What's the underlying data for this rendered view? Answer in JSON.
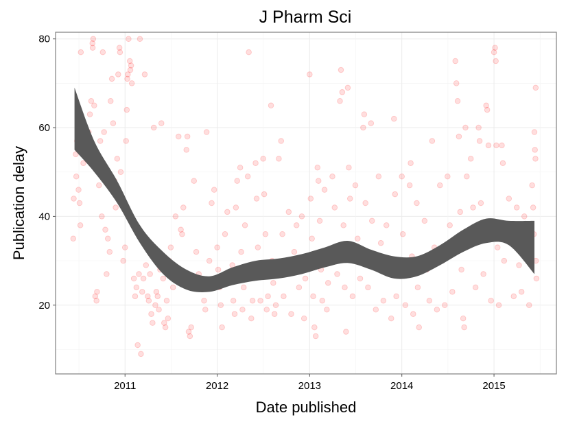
{
  "chart_data": {
    "type": "scatter",
    "title": "J Pharm Sci",
    "xlabel": "Date published",
    "ylabel": "Publication delay",
    "x_range": [
      "2010-04-01",
      "2015-09-05"
    ],
    "y_range": [
      4.5,
      81.5
    ],
    "x_ticks": [
      {
        "date": "2011-01-01",
        "label": "2011"
      },
      {
        "date": "2012-01-01",
        "label": "2012"
      },
      {
        "date": "2013-01-01",
        "label": "2013"
      },
      {
        "date": "2014-01-01",
        "label": "2014"
      },
      {
        "date": "2015-01-01",
        "label": "2015"
      }
    ],
    "y_ticks": [
      20,
      40,
      60,
      80
    ],
    "grid": true,
    "point_color": "#ff0000",
    "point_opacity": 0.13,
    "smooth_color": "#595959",
    "series": [
      {
        "type": "smooth_ribbon",
        "x": [
          "2010-06-15",
          "2010-09-01",
          "2010-12-01",
          "2011-03-01",
          "2011-06-01",
          "2011-09-01",
          "2011-12-01",
          "2012-03-01",
          "2012-06-01",
          "2012-09-01",
          "2012-12-01",
          "2013-03-01",
          "2013-06-01",
          "2013-09-01",
          "2013-12-01",
          "2014-03-01",
          "2014-06-01",
          "2014-09-01",
          "2014-12-01",
          "2015-03-01",
          "2015-06-10"
        ],
        "lower": [
          55,
          50,
          43,
          34,
          27,
          23.5,
          23,
          24.5,
          25.5,
          26,
          27,
          28.5,
          29.5,
          28,
          26,
          26.5,
          29,
          32,
          34,
          33.5,
          27
        ],
        "upper": [
          69,
          57,
          48,
          38,
          32,
          28,
          26.5,
          28.5,
          30,
          30.5,
          31.5,
          33,
          34.5,
          32.5,
          31,
          31,
          33.5,
          37,
          39.5,
          39,
          39
        ]
      }
    ],
    "points": [
      [
        "2010-06-10",
        35
      ],
      [
        "2010-06-12",
        44
      ],
      [
        "2010-06-20",
        54
      ],
      [
        "2010-06-22",
        49
      ],
      [
        "2010-06-25",
        57
      ],
      [
        "2010-07-01",
        46
      ],
      [
        "2010-07-03",
        61
      ],
      [
        "2010-07-05",
        43
      ],
      [
        "2010-07-08",
        38
      ],
      [
        "2010-07-10",
        77
      ],
      [
        "2010-07-20",
        52
      ],
      [
        "2010-08-01",
        56
      ],
      [
        "2010-08-10",
        59
      ],
      [
        "2010-08-15",
        63
      ],
      [
        "2010-08-20",
        66
      ],
      [
        "2010-08-25",
        79
      ],
      [
        "2010-08-26",
        78
      ],
      [
        "2010-08-28",
        80
      ],
      [
        "2010-09-01",
        65
      ],
      [
        "2010-09-05",
        22
      ],
      [
        "2010-09-10",
        21
      ],
      [
        "2010-09-12",
        23
      ],
      [
        "2010-09-15",
        54
      ],
      [
        "2010-09-20",
        47
      ],
      [
        "2010-09-25",
        57
      ],
      [
        "2010-10-01",
        40
      ],
      [
        "2010-10-05",
        77
      ],
      [
        "2010-10-10",
        59
      ],
      [
        "2010-10-15",
        37
      ],
      [
        "2010-10-20",
        27
      ],
      [
        "2010-10-25",
        35
      ],
      [
        "2010-11-01",
        32
      ],
      [
        "2010-11-05",
        66
      ],
      [
        "2010-11-10",
        71
      ],
      [
        "2010-11-15",
        61
      ],
      [
        "2010-11-20",
        48
      ],
      [
        "2010-11-25",
        42
      ],
      [
        "2010-12-01",
        53
      ],
      [
        "2010-12-05",
        72
      ],
      [
        "2010-12-10",
        78
      ],
      [
        "2010-12-12",
        77
      ],
      [
        "2010-12-15",
        50
      ],
      [
        "2010-12-20",
        44
      ],
      [
        "2010-12-25",
        30
      ],
      [
        "2011-01-01",
        33
      ],
      [
        "2011-01-05",
        57
      ],
      [
        "2011-01-08",
        64
      ],
      [
        "2011-01-10",
        71
      ],
      [
        "2011-01-12",
        72
      ],
      [
        "2011-01-15",
        80
      ],
      [
        "2011-01-20",
        75
      ],
      [
        "2011-01-22",
        73
      ],
      [
        "2011-01-25",
        74
      ],
      [
        "2011-01-28",
        70
      ],
      [
        "2011-02-01",
        38
      ],
      [
        "2011-02-05",
        26
      ],
      [
        "2011-02-10",
        22
      ],
      [
        "2011-02-15",
        24
      ],
      [
        "2011-02-20",
        11
      ],
      [
        "2011-02-25",
        27
      ],
      [
        "2011-03-01",
        80
      ],
      [
        "2011-03-05",
        9
      ],
      [
        "2011-03-10",
        23
      ],
      [
        "2011-03-15",
        26
      ],
      [
        "2011-03-20",
        72
      ],
      [
        "2011-03-25",
        29
      ],
      [
        "2011-04-01",
        22
      ],
      [
        "2011-04-05",
        21
      ],
      [
        "2011-04-10",
        27
      ],
      [
        "2011-04-15",
        18
      ],
      [
        "2011-04-20",
        16
      ],
      [
        "2011-04-25",
        60
      ],
      [
        "2011-05-01",
        20
      ],
      [
        "2011-05-05",
        23
      ],
      [
        "2011-05-10",
        22
      ],
      [
        "2011-05-15",
        19
      ],
      [
        "2011-05-20",
        28
      ],
      [
        "2011-05-25",
        61
      ],
      [
        "2011-06-01",
        26
      ],
      [
        "2011-06-05",
        16
      ],
      [
        "2011-06-10",
        15
      ],
      [
        "2011-06-15",
        21
      ],
      [
        "2011-06-20",
        17
      ],
      [
        "2011-06-25",
        30
      ],
      [
        "2011-07-01",
        33
      ],
      [
        "2011-07-05",
        27
      ],
      [
        "2011-07-10",
        24
      ],
      [
        "2011-07-20",
        40
      ],
      [
        "2011-08-01",
        58
      ],
      [
        "2011-08-10",
        37
      ],
      [
        "2011-08-15",
        36
      ],
      [
        "2011-08-20",
        42
      ],
      [
        "2011-09-01",
        55
      ],
      [
        "2011-09-05",
        58
      ],
      [
        "2011-09-10",
        14
      ],
      [
        "2011-09-15",
        13
      ],
      [
        "2011-09-20",
        15
      ],
      [
        "2011-10-01",
        48
      ],
      [
        "2011-10-10",
        32
      ],
      [
        "2011-10-20",
        27
      ],
      [
        "2011-11-01",
        24
      ],
      [
        "2011-11-10",
        21
      ],
      [
        "2011-11-15",
        19
      ],
      [
        "2011-11-20",
        59
      ],
      [
        "2011-12-01",
        30
      ],
      [
        "2011-12-10",
        43
      ],
      [
        "2011-12-20",
        46
      ],
      [
        "2012-01-01",
        33
      ],
      [
        "2012-01-05",
        28
      ],
      [
        "2012-01-10",
        24
      ],
      [
        "2012-01-15",
        20
      ],
      [
        "2012-01-20",
        15
      ],
      [
        "2012-02-01",
        36
      ],
      [
        "2012-02-10",
        41
      ],
      [
        "2012-02-20",
        25
      ],
      [
        "2012-03-01",
        29
      ],
      [
        "2012-03-05",
        21
      ],
      [
        "2012-03-10",
        18
      ],
      [
        "2012-03-15",
        42
      ],
      [
        "2012-03-20",
        48
      ],
      [
        "2012-04-01",
        51
      ],
      [
        "2012-04-05",
        32
      ],
      [
        "2012-04-10",
        19
      ],
      [
        "2012-04-15",
        24
      ],
      [
        "2012-04-20",
        38
      ],
      [
        "2012-05-01",
        49
      ],
      [
        "2012-05-05",
        77
      ],
      [
        "2012-05-10",
        26
      ],
      [
        "2012-05-15",
        17
      ],
      [
        "2012-05-20",
        21
      ],
      [
        "2012-06-01",
        52
      ],
      [
        "2012-06-05",
        44
      ],
      [
        "2012-06-10",
        33
      ],
      [
        "2012-06-15",
        28
      ],
      [
        "2012-06-20",
        21
      ],
      [
        "2012-07-01",
        53
      ],
      [
        "2012-07-05",
        45
      ],
      [
        "2012-07-10",
        36
      ],
      [
        "2012-07-15",
        19
      ],
      [
        "2012-07-20",
        22
      ],
      [
        "2012-08-01",
        65
      ],
      [
        "2012-08-05",
        30
      ],
      [
        "2012-08-10",
        25
      ],
      [
        "2012-08-15",
        18
      ],
      [
        "2012-08-20",
        20
      ],
      [
        "2012-09-01",
        53
      ],
      [
        "2012-09-10",
        57
      ],
      [
        "2012-09-15",
        36
      ],
      [
        "2012-09-20",
        22
      ],
      [
        "2012-10-01",
        28
      ],
      [
        "2012-10-10",
        41
      ],
      [
        "2012-10-20",
        18
      ],
      [
        "2012-11-01",
        32
      ],
      [
        "2012-11-10",
        38
      ],
      [
        "2012-11-20",
        24
      ],
      [
        "2012-12-01",
        40
      ],
      [
        "2012-12-10",
        17
      ],
      [
        "2012-12-15",
        26
      ],
      [
        "2013-01-01",
        72
      ],
      [
        "2013-01-05",
        44
      ],
      [
        "2013-01-10",
        35
      ],
      [
        "2013-01-15",
        22
      ],
      [
        "2013-01-20",
        15
      ],
      [
        "2013-01-25",
        13
      ],
      [
        "2013-02-01",
        51
      ],
      [
        "2013-02-05",
        48
      ],
      [
        "2013-02-10",
        39
      ],
      [
        "2013-02-15",
        28
      ],
      [
        "2013-02-20",
        21
      ],
      [
        "2013-03-01",
        46
      ],
      [
        "2013-03-05",
        30
      ],
      [
        "2013-03-10",
        19
      ],
      [
        "2013-03-15",
        25
      ],
      [
        "2013-04-01",
        49
      ],
      [
        "2013-04-10",
        42
      ],
      [
        "2013-04-20",
        27
      ],
      [
        "2013-05-01",
        66
      ],
      [
        "2013-05-05",
        73
      ],
      [
        "2013-05-10",
        68
      ],
      [
        "2013-05-15",
        38
      ],
      [
        "2013-05-20",
        24
      ],
      [
        "2013-05-25",
        14
      ],
      [
        "2013-06-01",
        69
      ],
      [
        "2013-06-05",
        51
      ],
      [
        "2013-06-10",
        44
      ],
      [
        "2013-06-15",
        31
      ],
      [
        "2013-06-20",
        22
      ],
      [
        "2013-07-01",
        47
      ],
      [
        "2013-07-10",
        35
      ],
      [
        "2013-07-20",
        26
      ],
      [
        "2013-08-01",
        60
      ],
      [
        "2013-08-05",
        63
      ],
      [
        "2013-08-10",
        43
      ],
      [
        "2013-08-20",
        24
      ],
      [
        "2013-09-01",
        61
      ],
      [
        "2013-09-05",
        39
      ],
      [
        "2013-09-10",
        29
      ],
      [
        "2013-09-20",
        19
      ],
      [
        "2013-10-01",
        49
      ],
      [
        "2013-10-10",
        34
      ],
      [
        "2013-10-20",
        21
      ],
      [
        "2013-11-01",
        38
      ],
      [
        "2013-11-10",
        28
      ],
      [
        "2013-11-20",
        17
      ],
      [
        "2013-12-01",
        62
      ],
      [
        "2013-12-05",
        45
      ],
      [
        "2013-12-10",
        22
      ],
      [
        "2014-01-01",
        49
      ],
      [
        "2014-01-05",
        36
      ],
      [
        "2014-01-10",
        27
      ],
      [
        "2014-01-15",
        20
      ],
      [
        "2014-02-01",
        47
      ],
      [
        "2014-02-05",
        52
      ],
      [
        "2014-02-10",
        31
      ],
      [
        "2014-02-15",
        18
      ],
      [
        "2014-03-01",
        43
      ],
      [
        "2014-03-05",
        24
      ],
      [
        "2014-03-10",
        15
      ],
      [
        "2014-04-01",
        39
      ],
      [
        "2014-04-10",
        28
      ],
      [
        "2014-04-20",
        21
      ],
      [
        "2014-05-01",
        57
      ],
      [
        "2014-05-10",
        33
      ],
      [
        "2014-05-20",
        19
      ],
      [
        "2014-06-01",
        47
      ],
      [
        "2014-06-10",
        30
      ],
      [
        "2014-06-20",
        20
      ],
      [
        "2014-07-01",
        49
      ],
      [
        "2014-07-10",
        38
      ],
      [
        "2014-07-20",
        23
      ],
      [
        "2014-08-01",
        75
      ],
      [
        "2014-08-05",
        70
      ],
      [
        "2014-08-10",
        66
      ],
      [
        "2014-08-15",
        58
      ],
      [
        "2014-08-20",
        41
      ],
      [
        "2014-08-25",
        28
      ],
      [
        "2014-09-01",
        17
      ],
      [
        "2014-09-05",
        15
      ],
      [
        "2014-09-10",
        60
      ],
      [
        "2014-09-15",
        49
      ],
      [
        "2014-09-20",
        35
      ],
      [
        "2014-10-01",
        53
      ],
      [
        "2014-10-10",
        42
      ],
      [
        "2014-10-20",
        24
      ],
      [
        "2014-11-01",
        60
      ],
      [
        "2014-11-05",
        57
      ],
      [
        "2014-11-10",
        43
      ],
      [
        "2014-11-20",
        27
      ],
      [
        "2014-12-01",
        65
      ],
      [
        "2014-12-05",
        64
      ],
      [
        "2014-12-10",
        56
      ],
      [
        "2014-12-15",
        37
      ],
      [
        "2014-12-20",
        21
      ],
      [
        "2015-01-01",
        77
      ],
      [
        "2015-01-05",
        78
      ],
      [
        "2015-01-08",
        75
      ],
      [
        "2015-01-10",
        56
      ],
      [
        "2015-01-15",
        33
      ],
      [
        "2015-01-20",
        20
      ],
      [
        "2015-02-01",
        56
      ],
      [
        "2015-02-05",
        52
      ],
      [
        "2015-02-10",
        30
      ],
      [
        "2015-03-01",
        44
      ],
      [
        "2015-03-10",
        36
      ],
      [
        "2015-03-20",
        22
      ],
      [
        "2015-04-01",
        42
      ],
      [
        "2015-04-10",
        29
      ],
      [
        "2015-04-20",
        23
      ],
      [
        "2015-05-01",
        40
      ],
      [
        "2015-05-10",
        31
      ],
      [
        "2015-05-20",
        20
      ],
      [
        "2015-06-01",
        47
      ],
      [
        "2015-06-05",
        42
      ],
      [
        "2015-06-08",
        36
      ],
      [
        "2015-06-10",
        59
      ],
      [
        "2015-06-12",
        55
      ],
      [
        "2015-06-14",
        53
      ],
      [
        "2015-06-15",
        69
      ],
      [
        "2015-06-16",
        30
      ],
      [
        "2015-06-18",
        26
      ]
    ]
  }
}
